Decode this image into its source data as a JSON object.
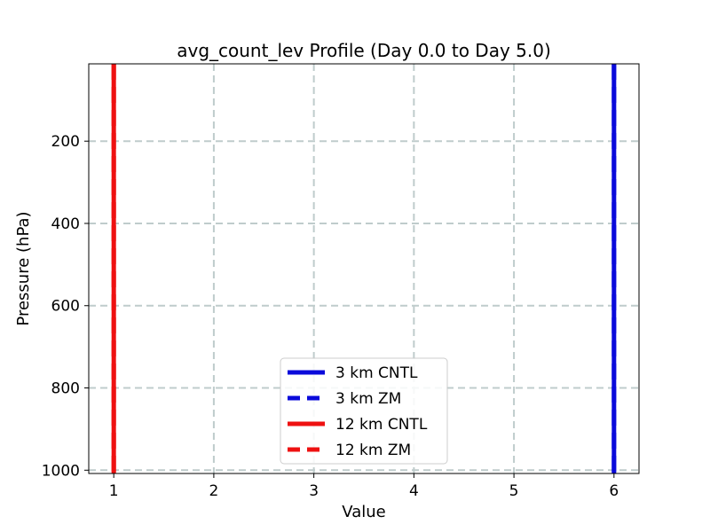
{
  "chart_data": {
    "type": "line",
    "title": "avg_count_lev Profile (Day 0.0 to Day 5.0)",
    "xlabel": "Value",
    "ylabel": "Pressure (hPa)",
    "xlim": [
      0.75,
      6.25
    ],
    "ylim": [
      1008,
      12
    ],
    "y_inverted": true,
    "grid": true,
    "x_ticks": [
      1,
      2,
      3,
      4,
      5,
      6
    ],
    "x_tick_labels": [
      "1",
      "2",
      "3",
      "4",
      "5",
      "6"
    ],
    "y_ticks": [
      200,
      400,
      600,
      800,
      1000
    ],
    "y_tick_labels": [
      "200",
      "400",
      "600",
      "800",
      "1000"
    ],
    "legend_position": "lower-center",
    "series": [
      {
        "name": "3 km CNTL",
        "color": "#0a0adb",
        "style": "solid",
        "points": [
          [
            6,
            12
          ],
          [
            6,
            1008
          ]
        ]
      },
      {
        "name": "3 km ZM",
        "color": "#0a0adb",
        "style": "dashed",
        "points": [
          [
            6,
            12
          ],
          [
            6,
            1008
          ]
        ]
      },
      {
        "name": "12 km CNTL",
        "color": "#ee1111",
        "style": "solid",
        "points": [
          [
            1,
            12
          ],
          [
            1,
            1008
          ]
        ]
      },
      {
        "name": "12 km ZM",
        "color": "#ee1111",
        "style": "dashed",
        "points": [
          [
            1,
            12
          ],
          [
            1,
            1008
          ]
        ]
      }
    ]
  }
}
